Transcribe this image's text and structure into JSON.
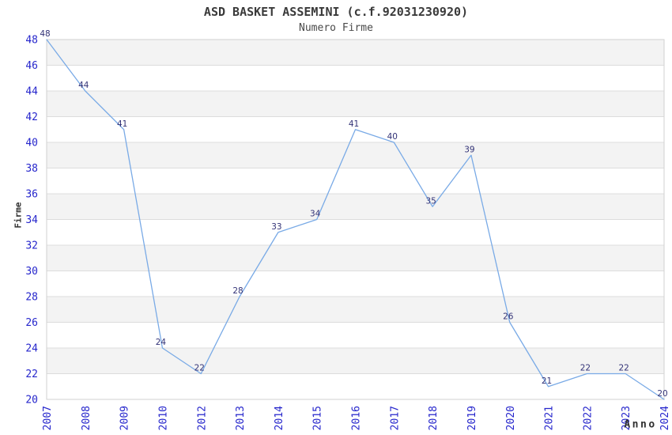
{
  "title": "ASD BASKET ASSEMINI (c.f.92031230920)",
  "subtitle": "Numero Firme",
  "chart_data": {
    "type": "line",
    "title": "ASD BASKET ASSEMINI (c.f.92031230920)",
    "subtitle": "Numero Firme",
    "xlabel": "Anno",
    "ylabel": "Firme",
    "x": [
      "2007",
      "2008",
      "2009",
      "2010",
      "2012",
      "2013",
      "2014",
      "2015",
      "2016",
      "2017",
      "2018",
      "2019",
      "2020",
      "2021",
      "2022",
      "2023",
      "2024"
    ],
    "values": [
      48,
      44,
      41,
      24,
      22,
      28,
      33,
      34,
      41,
      40,
      35,
      39,
      26,
      21,
      22,
      22,
      20
    ],
    "ylim": [
      20,
      48
    ],
    "ytick_step": 2,
    "yticks": [
      20,
      22,
      24,
      26,
      28,
      30,
      32,
      34,
      36,
      38,
      40,
      42,
      44,
      46,
      48
    ],
    "grid": "horizontal-bands-alternating",
    "legend": "none",
    "point_labels": true,
    "style": {
      "line_color": "#79aae6",
      "tick_label_color": "#2626cc",
      "point_label_color": "#333377",
      "band_color": "#f3f3f3",
      "gridline_color": "#dcdcdc",
      "border_color": "#d2d2d2",
      "title_color": "#3a3a3a",
      "subtitle_color": "#4a4a4a",
      "axis_title_color": "#303030",
      "background": "#ffffff"
    }
  }
}
